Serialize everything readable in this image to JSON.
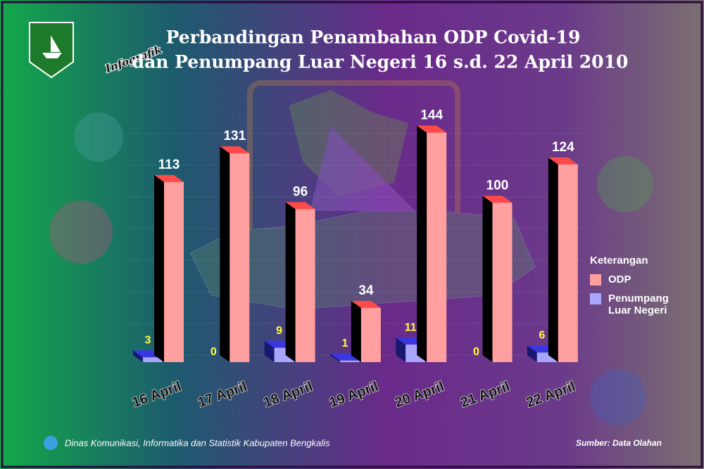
{
  "chart_data": {
    "type": "bar3d",
    "title_lines": [
      "Perbandingan Penambahan ODP Covid-19",
      "dan Penumpang Luar Negeri 16 s.d. 22 April 2010"
    ],
    "tag": "Infografik",
    "categories": [
      "16 April",
      "17 April",
      "18 April",
      "19 April",
      "20 April",
      "21 April",
      "22 April"
    ],
    "series": [
      {
        "name": "Penumpang Luar Negeri",
        "color": "#a9a6ff",
        "values": [
          3,
          0,
          9,
          1,
          11,
          0,
          6
        ]
      },
      {
        "name": "ODP",
        "color": "#ff9f9f",
        "values": [
          113,
          131,
          96,
          34,
          144,
          100,
          124
        ]
      }
    ],
    "ylim": [
      0,
      150
    ],
    "legend_title": "Keterangan",
    "legend_order": [
      1,
      0
    ],
    "footer_left": "Dinas Komunikasi, Informatika dan Statistik Kabupaten Bengkalis",
    "footer_right": "Sumber: Data Olahan"
  }
}
